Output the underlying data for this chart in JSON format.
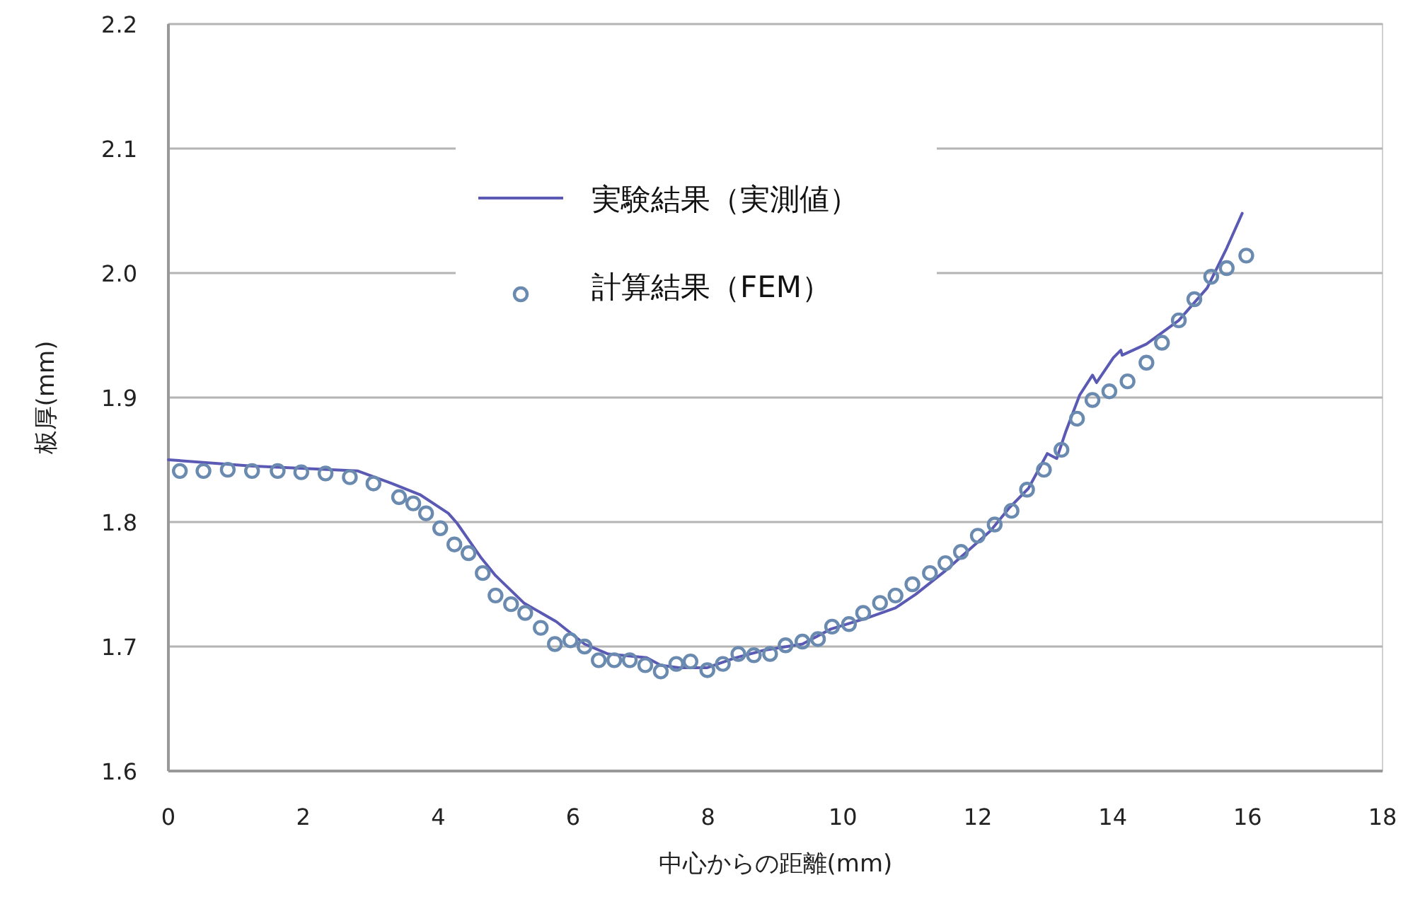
{
  "chart_data": {
    "type": "line",
    "xlabel": "中心からの距離(mm)",
    "ylabel": "板厚(mm)",
    "xlim": [
      0,
      18
    ],
    "xticks": [
      0,
      2,
      4,
      6,
      8,
      10,
      12,
      14,
      16,
      18
    ],
    "ylim": [
      1.6,
      2.2
    ],
    "yticks": [
      1.6,
      1.7,
      1.8,
      1.9,
      {
        "value": 2,
        "label": "2.0"
      },
      2.1,
      2.2
    ],
    "grid": "y",
    "legend": "top",
    "series": [
      {
        "name": "実験結果（実測値）",
        "type": "line",
        "marker": "none",
        "line_style": "solid",
        "color": "#5a5ab4",
        "x": [
          0,
          1.22,
          2.81,
          3.31,
          3.73,
          4.15,
          4.28,
          4.64,
          4.85,
          5.27,
          5.75,
          6.17,
          6.52,
          7.09,
          7.3,
          7.57,
          7.99,
          8.41,
          8.83,
          9.4,
          9.82,
          10.36,
          10.78,
          11.08,
          11.5,
          12.19,
          12.46,
          12.75,
          13.03,
          13.17,
          13.3,
          13.51,
          13.7,
          13.76,
          14.01,
          14.12,
          14.14,
          14.5,
          14.98,
          15.4,
          15.69,
          15.92
        ],
        "values": [
          1.85,
          1.845,
          1.841,
          1.831,
          1.822,
          1.807,
          1.799,
          1.771,
          1.757,
          1.735,
          1.72,
          1.702,
          1.694,
          1.691,
          1.685,
          1.683,
          1.683,
          1.691,
          1.697,
          1.702,
          1.714,
          1.723,
          1.731,
          1.742,
          1.76,
          1.793,
          1.811,
          1.827,
          1.855,
          1.851,
          1.872,
          1.902,
          1.918,
          1.912,
          1.932,
          1.938,
          1.934,
          1.943,
          1.962,
          1.988,
          2.02,
          2.048
        ]
      },
      {
        "name": "計算結果（FEM）",
        "type": "scatter",
        "marker": "circle",
        "color": "#6a8ab0",
        "x": [
          0.17,
          0.52,
          0.88,
          1.24,
          1.62,
          1.97,
          2.33,
          2.69,
          3.04,
          3.42,
          3.63,
          3.82,
          4.03,
          4.24,
          4.45,
          4.66,
          4.85,
          5.08,
          5.29,
          5.52,
          5.73,
          5.96,
          6.17,
          6.38,
          6.61,
          6.84,
          7.07,
          7.3,
          7.53,
          7.74,
          7.99,
          8.22,
          8.45,
          8.68,
          8.92,
          9.15,
          9.4,
          9.63,
          9.84,
          10.09,
          10.3,
          10.55,
          10.78,
          11.03,
          11.29,
          11.52,
          11.75,
          12,
          12.25,
          12.5,
          12.73,
          12.98,
          13.24,
          13.47,
          13.7,
          13.95,
          14.22,
          14.5,
          14.73,
          14.98,
          15.21,
          15.46,
          15.69,
          15.98
        ],
        "values": [
          1.841,
          1.841,
          1.842,
          1.841,
          1.841,
          1.84,
          1.839,
          1.836,
          1.831,
          1.82,
          1.815,
          1.807,
          1.795,
          1.782,
          1.775,
          1.759,
          1.741,
          1.734,
          1.727,
          1.715,
          1.702,
          1.705,
          1.7,
          1.689,
          1.689,
          1.689,
          1.685,
          1.68,
          1.686,
          1.688,
          1.681,
          1.686,
          1.694,
          1.693,
          1.694,
          1.701,
          1.704,
          1.706,
          1.716,
          1.718,
          1.727,
          1.735,
          1.741,
          1.75,
          1.759,
          1.767,
          1.776,
          1.789,
          1.798,
          1.809,
          1.826,
          1.842,
          1.858,
          1.883,
          1.898,
          1.905,
          1.913,
          1.928,
          1.944,
          1.962,
          1.979,
          1.997,
          2.004,
          2.014
        ]
      }
    ]
  }
}
